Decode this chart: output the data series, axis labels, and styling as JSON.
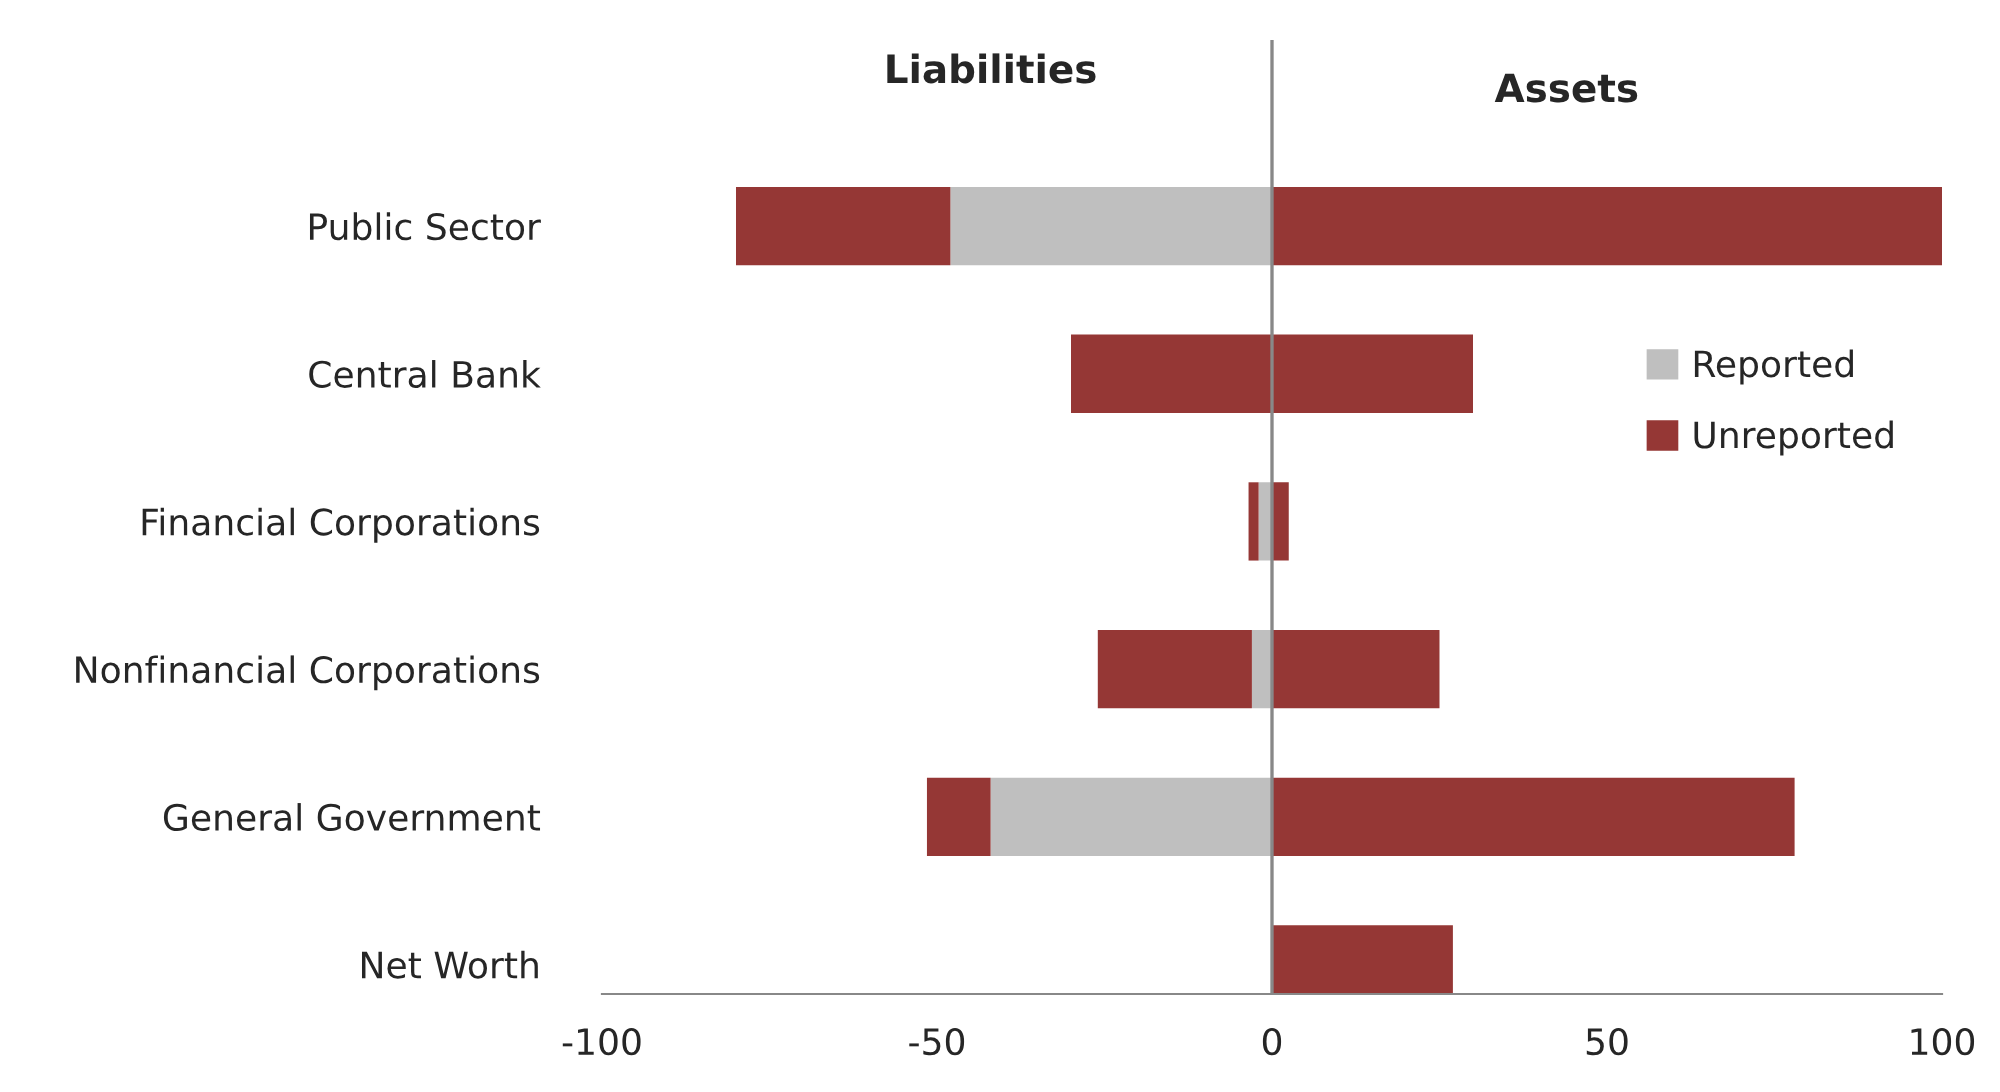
{
  "chart_data": {
    "type": "bar",
    "orientation": "horizontal",
    "stacked": true,
    "categories": [
      "Public Sector",
      "Central Bank",
      "Financial Corporations",
      "Nonfinancial Corporations",
      "General Government",
      "Net Worth"
    ],
    "series": [
      {
        "name": "Reported",
        "color": "#bfbfbf",
        "values": [
          -48,
          0,
          -2,
          -3,
          -42,
          0
        ]
      },
      {
        "name": "Unreported",
        "color": "#953735",
        "values": [
          -32,
          -30,
          -1.5,
          -23,
          -9.5,
          0
        ]
      },
      {
        "color": "#953735",
        "values": [
          100,
          30,
          2.5,
          25,
          78,
          27
        ]
      }
    ],
    "xlim": [
      -100,
      100
    ],
    "xticks": [
      -100,
      -50,
      0,
      50,
      100
    ],
    "annotations": [
      "Liabilities",
      "Assets"
    ],
    "ref_lines": [
      {
        "axis": "x",
        "value": 0,
        "color": "#888888"
      }
    ],
    "legend": "right",
    "grid": false
  }
}
